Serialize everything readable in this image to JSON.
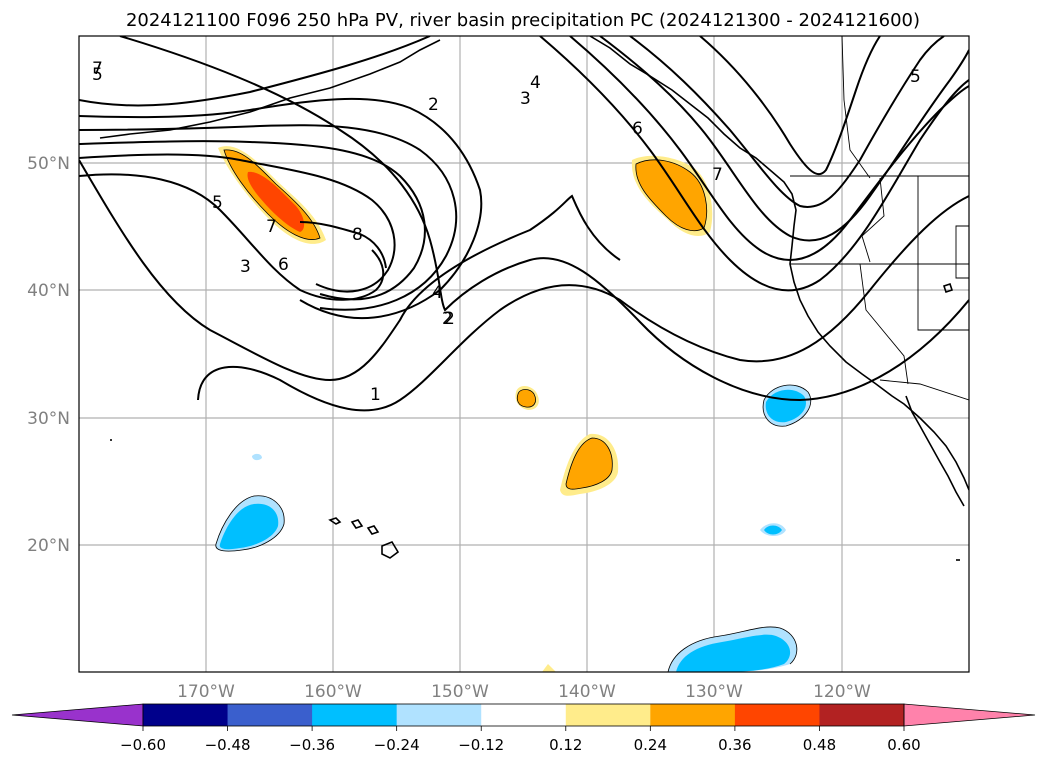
{
  "title": "2024121100 F096 250 hPa PV, river basin precipitation PC (2024121300 - 2024121600)",
  "map": {
    "projection": "platecarree",
    "lon_range": [
      -180,
      -110
    ],
    "lat_range": [
      10,
      60
    ],
    "gridlines": true,
    "lat_labels": [
      "50°N",
      "40°N",
      "30°N",
      "20°N"
    ],
    "lon_labels": [
      "170°W",
      "160°W",
      "150°W",
      "140°W",
      "130°W",
      "120°W"
    ]
  },
  "colorbar": {
    "orientation": "horizontal",
    "extend": "both",
    "colors": [
      "#9932cc",
      "#00008b",
      "#3a5fcd",
      "#00bfff",
      "#b0e2ff",
      "#ffffff",
      "#ffec8b",
      "#ffa500",
      "#ff4500",
      "#b22222",
      "#ff82ab"
    ],
    "ticks": [
      "−0.60",
      "−0.48",
      "−0.36",
      "−0.24",
      "−0.12",
      "0.12",
      "0.24",
      "0.36",
      "0.48",
      "0.60"
    ]
  },
  "contour_labels": [
    {
      "text": "1"
    },
    {
      "text": "2"
    },
    {
      "text": "3"
    },
    {
      "text": "4"
    },
    {
      "text": "5"
    },
    {
      "text": "6"
    },
    {
      "text": "7"
    },
    {
      "text": "8"
    },
    {
      "text": "2"
    },
    {
      "text": "4"
    },
    {
      "text": "3"
    },
    {
      "text": "5"
    },
    {
      "text": "6"
    },
    {
      "text": "7"
    },
    {
      "text": "5"
    },
    {
      "text": "7"
    },
    {
      "text": "2"
    }
  ]
}
